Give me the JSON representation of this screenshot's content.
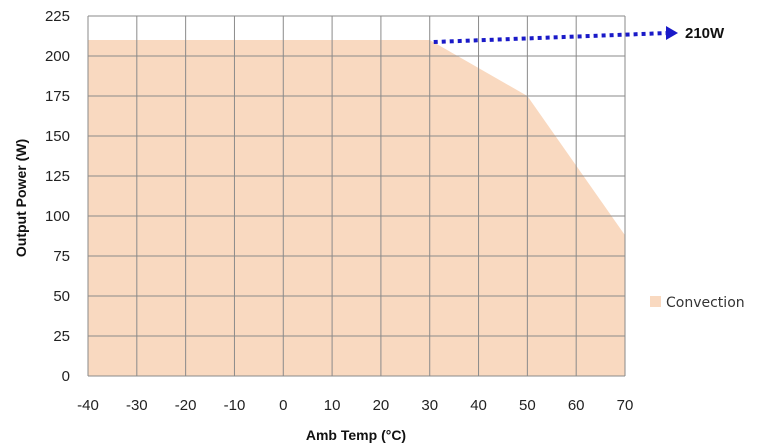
{
  "chart_data": {
    "type": "area",
    "xlabel": "Amb Temp (°C)",
    "ylabel": "Output Power (W)",
    "xlim": [
      -40,
      70
    ],
    "ylim": [
      0,
      225
    ],
    "x_ticks": [
      -40,
      -30,
      -20,
      -10,
      0,
      10,
      20,
      30,
      40,
      50,
      60,
      70
    ],
    "y_ticks": [
      0,
      25,
      50,
      75,
      100,
      125,
      150,
      175,
      200,
      225
    ],
    "grid": true,
    "legend_position": "right",
    "series": [
      {
        "name": "Convection",
        "color": "#f9d9c0",
        "x": [
          -40,
          30,
          50,
          70
        ],
        "y": [
          210,
          210,
          175,
          88
        ]
      }
    ],
    "annotation": {
      "text": "210W",
      "y": 210,
      "x_start": 30,
      "arrow_style": "dotted",
      "color": "#1a1ac8"
    }
  }
}
